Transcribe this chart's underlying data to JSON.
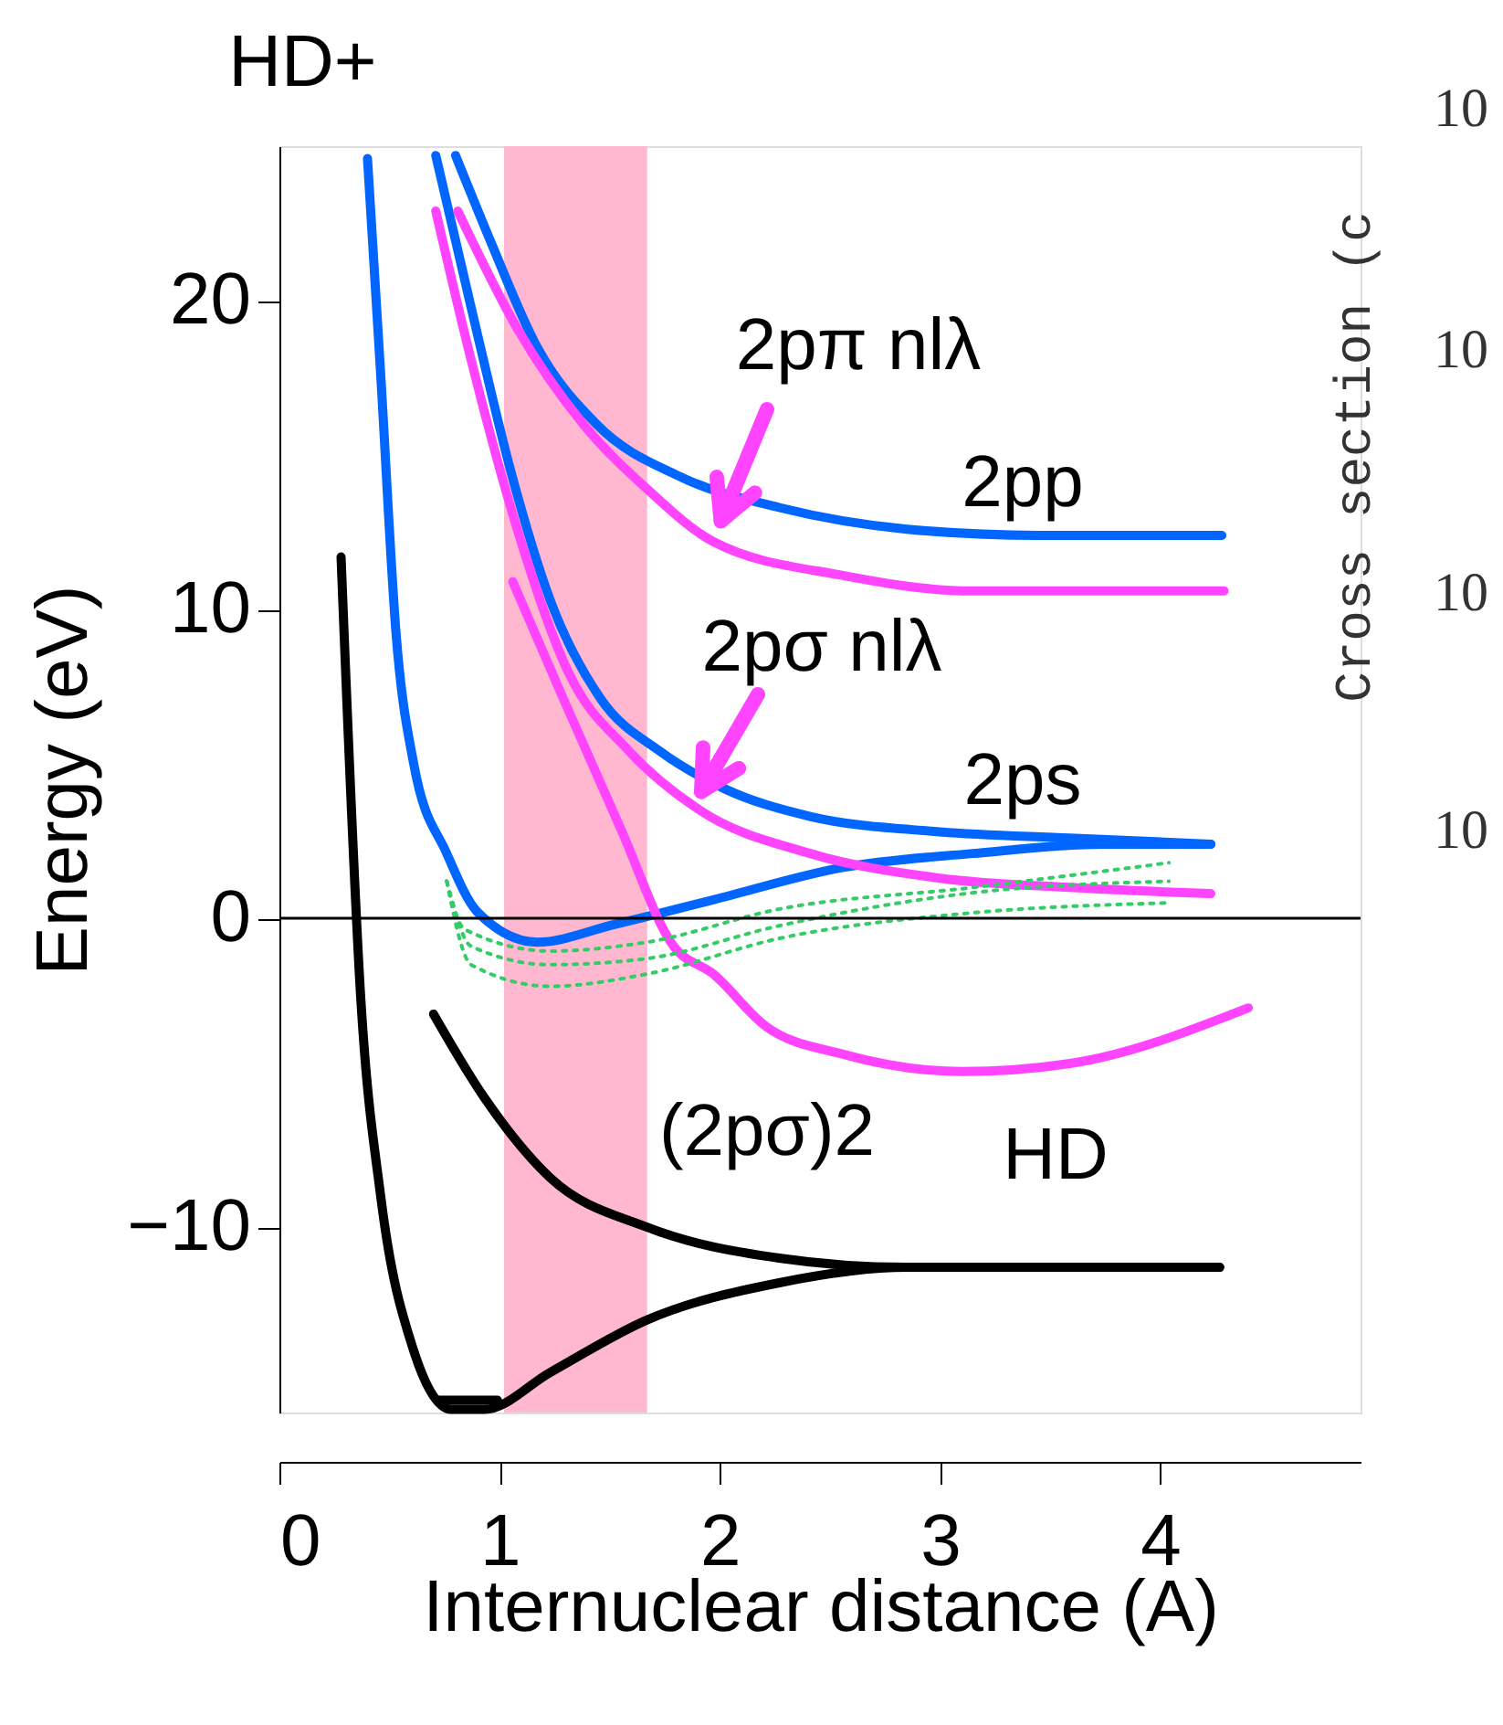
{
  "chart_data": {
    "type": "line",
    "title": "HD+",
    "xlabel": "Internuclear distance (A)",
    "ylabel": "Energy (eV)",
    "xlim": [
      0,
      4.91
    ],
    "ylim": [
      -16,
      25
    ],
    "xticks": [
      0,
      1,
      2,
      3,
      4
    ],
    "yticks": [
      -10,
      0,
      10,
      20
    ],
    "grid": false,
    "marker": "none",
    "line_style": "solid",
    "series": [
      {
        "color": "#0066ff",
        "x": [
          0.4,
          0.46,
          0.53,
          0.61,
          0.76,
          0.9,
          1.17,
          1.52,
          1.97,
          2.56,
          3.15,
          3.74,
          4.23
        ],
        "values": [
          24.6,
          17.6,
          9.2,
          5.0,
          2.1,
          0.2,
          -0.77,
          -0.2,
          0.6,
          1.65,
          2.1,
          2.4,
          2.4
        ]
      },
      {
        "color": "#0066ff",
        "x": [
          0.71,
          0.87,
          1.05,
          1.23,
          1.46,
          1.73,
          2.02,
          2.41,
          3.0,
          3.59,
          4.23
        ],
        "values": [
          24.7,
          19.8,
          14.5,
          10.3,
          7.1,
          5.4,
          4.2,
          3.3,
          2.8,
          2.6,
          2.4
        ]
      },
      {
        "color": "#0066ff",
        "x": [
          0.8,
          0.96,
          1.17,
          1.44,
          1.82,
          2.27,
          2.85,
          3.45,
          4.28
        ],
        "values": [
          24.7,
          21.9,
          18.5,
          16.0,
          14.3,
          13.3,
          12.6,
          12.4,
          12.4
        ]
      },
      {
        "color": "#ff44ff",
        "x": [
          0.81,
          1.08,
          1.38,
          1.67,
          1.97,
          2.56,
          3.15,
          4.29
        ],
        "values": [
          22.9,
          19.1,
          16.0,
          13.9,
          12.2,
          11.1,
          10.6,
          10.6
        ]
      },
      {
        "color": "#ff44ff",
        "x": [
          0.71,
          0.87,
          1.08,
          1.31,
          1.59,
          1.91,
          2.41,
          3.0,
          3.59,
          4.23
        ],
        "values": [
          22.9,
          18.1,
          12.6,
          8.0,
          5.4,
          3.5,
          2.1,
          1.3,
          1.0,
          0.8
        ]
      },
      {
        "color": "#ff44ff",
        "x": [
          1.06,
          1.29,
          1.55,
          1.79,
          1.97,
          2.21,
          2.56,
          3.1,
          3.59,
          4.4
        ],
        "values": [
          10.9,
          7.1,
          2.9,
          -0.9,
          -1.8,
          -3.5,
          -4.4,
          -4.96,
          -4.7,
          -2.9
        ]
      },
      {
        "color": "#000000",
        "x": [
          0.28,
          0.37,
          0.46,
          0.61,
          0.78,
          0.93,
          1.23,
          1.67,
          2.27,
          2.85,
          4.27
        ],
        "values": [
          11.7,
          -2.65,
          -9.0,
          -14.0,
          -15.9,
          -15.9,
          -14.7,
          -13.0,
          -11.8,
          -11.3,
          -11.3
        ]
      },
      {
        "color": "#000000",
        "x": [
          0.7,
          0.93,
          1.23,
          1.67,
          2.27,
          2.85,
          4.27
        ],
        "values": [
          -3.1,
          -5.8,
          -8.4,
          -10.0,
          -11.0,
          -11.3,
          -11.3
        ]
      },
      {
        "color": "#000000",
        "x": [
          0.72,
          0.99
        ],
        "values": [
          -15.6,
          -15.6
        ]
      },
      {
        "color": "#33cc66",
        "line_style": "dotted",
        "x": [
          0.76,
          0.84,
          1.23,
          1.67,
          2.27,
          3.15,
          4.04
        ],
        "values": [
          1.2,
          -0.35,
          -1.06,
          -0.77,
          0.3,
          1.0,
          1.8
        ]
      },
      {
        "color": "#33cc66",
        "line_style": "dotted",
        "x": [
          0.76,
          0.87,
          1.23,
          1.67,
          2.27,
          3.15,
          4.04
        ],
        "values": [
          1.2,
          -0.9,
          -1.5,
          -1.3,
          -0.24,
          0.83,
          1.2
        ]
      },
      {
        "color": "#33cc66",
        "line_style": "dotted",
        "x": [
          0.76,
          0.87,
          1.23,
          1.67,
          2.27,
          3.15,
          4.04
        ],
        "values": [
          1.2,
          -1.5,
          -2.2,
          -1.8,
          -0.65,
          0.18,
          0.5
        ]
      }
    ],
    "ref_lines": [
      {
        "axis": "y",
        "value": 0,
        "color": "#000000"
      }
    ],
    "bands": [
      {
        "axis": "x",
        "from": 1.02,
        "to": 1.67,
        "color": "#ffb8d0"
      }
    ],
    "annotations": [
      "2pπ nlλ",
      "2pσ nlλ",
      "2pp",
      "2ps",
      "(2pσ)2",
      "HD",
      "Cross section (c",
      "10",
      "10",
      "10",
      "10"
    ]
  }
}
